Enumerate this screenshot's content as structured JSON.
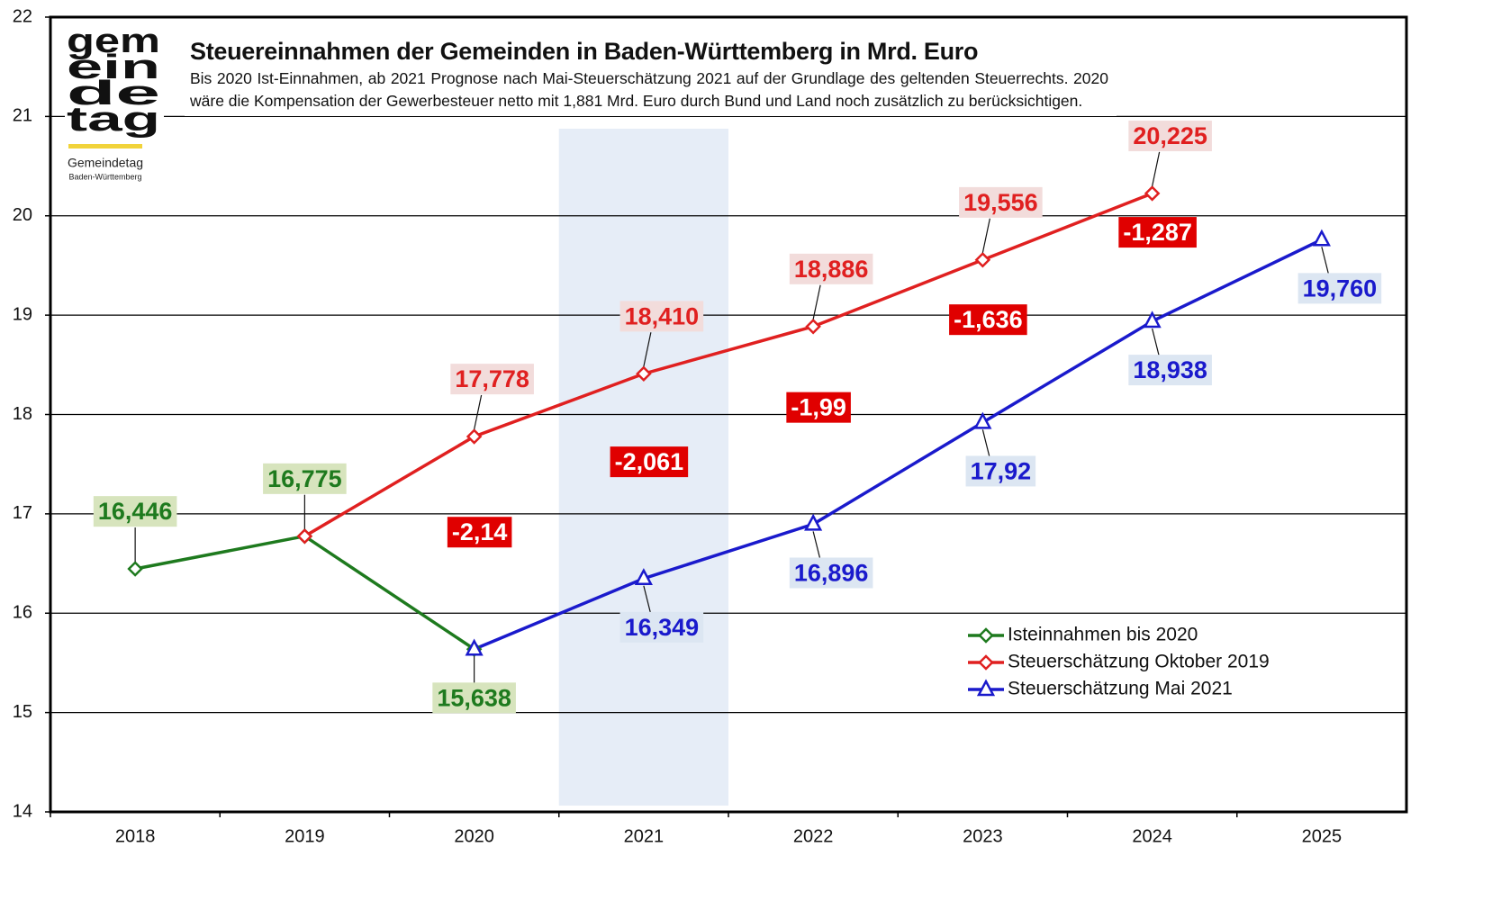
{
  "chart_data": {
    "type": "line",
    "title": "Steuereinnahmen der Gemeinden in Baden-Württemberg in Mrd. Euro",
    "subtitle": "Bis 2020 Ist-Einnahmen, ab 2021 Prognose nach Mai-Steuerschätzung 2021 auf der Grundlage des geltenden Steuerrechts. 2020 wäre die Kompensation der Gewerbesteuer netto mit 1,881 Mrd. Euro durch Bund und Land noch zusätzlich zu berücksichtigen.",
    "logo": {
      "mark": [
        "gem",
        "ein",
        "de",
        "tag"
      ],
      "name": "Gemeindetag",
      "region": "Baden-Württemberg"
    },
    "categories": [
      "2018",
      "2019",
      "2020",
      "2021",
      "2022",
      "2023",
      "2024",
      "2025"
    ],
    "series": [
      {
        "name": "Isteinnahmen bis 2020",
        "color": "#1e7a1e",
        "label_background": "#d7e4bd",
        "marker": "diamond",
        "values": [
          16.446,
          16.775,
          15.638,
          null,
          null,
          null,
          null,
          null
        ],
        "value_labels": [
          "16,446",
          "16,775",
          "15,638",
          null,
          null,
          null,
          null,
          null
        ]
      },
      {
        "name": "Steuerschätzung Oktober 2019",
        "color": "#e02020",
        "label_background": "#f2dcdb",
        "marker": "diamond",
        "values": [
          null,
          16.775,
          17.778,
          18.41,
          18.886,
          19.556,
          20.225,
          null
        ],
        "value_labels": [
          null,
          null,
          "17,778",
          "18,410",
          "18,886",
          "19,556",
          "20,225",
          null
        ]
      },
      {
        "name": "Steuerschätzung Mai 2021",
        "color": "#1a1acc",
        "label_background": "#dce6f2",
        "marker": "triangle",
        "values": [
          null,
          null,
          15.638,
          16.349,
          16.896,
          17.92,
          18.938,
          19.76
        ],
        "value_labels": [
          null,
          null,
          null,
          "16,349",
          "16,896",
          "17,92",
          "18,938",
          "19,760"
        ]
      }
    ],
    "differences": [
      {
        "category": "2020",
        "value": -2.14,
        "label": "-2,14"
      },
      {
        "category": "2021",
        "value": -2.061,
        "label": "-2,061"
      },
      {
        "category": "2022",
        "value": -1.99,
        "label": "-1,99"
      },
      {
        "category": "2023",
        "value": -1.636,
        "label": "-1,636"
      },
      {
        "category": "2024",
        "value": -1.287,
        "label": "-1,287"
      }
    ],
    "difference_color": "#e00000",
    "highlight": {
      "category": "2021",
      "color": "#e6edf7"
    },
    "ylim": [
      14,
      22
    ],
    "yticks": [
      14,
      15,
      16,
      17,
      18,
      19,
      20,
      21,
      22
    ],
    "grid": true,
    "legend": "lower right"
  }
}
